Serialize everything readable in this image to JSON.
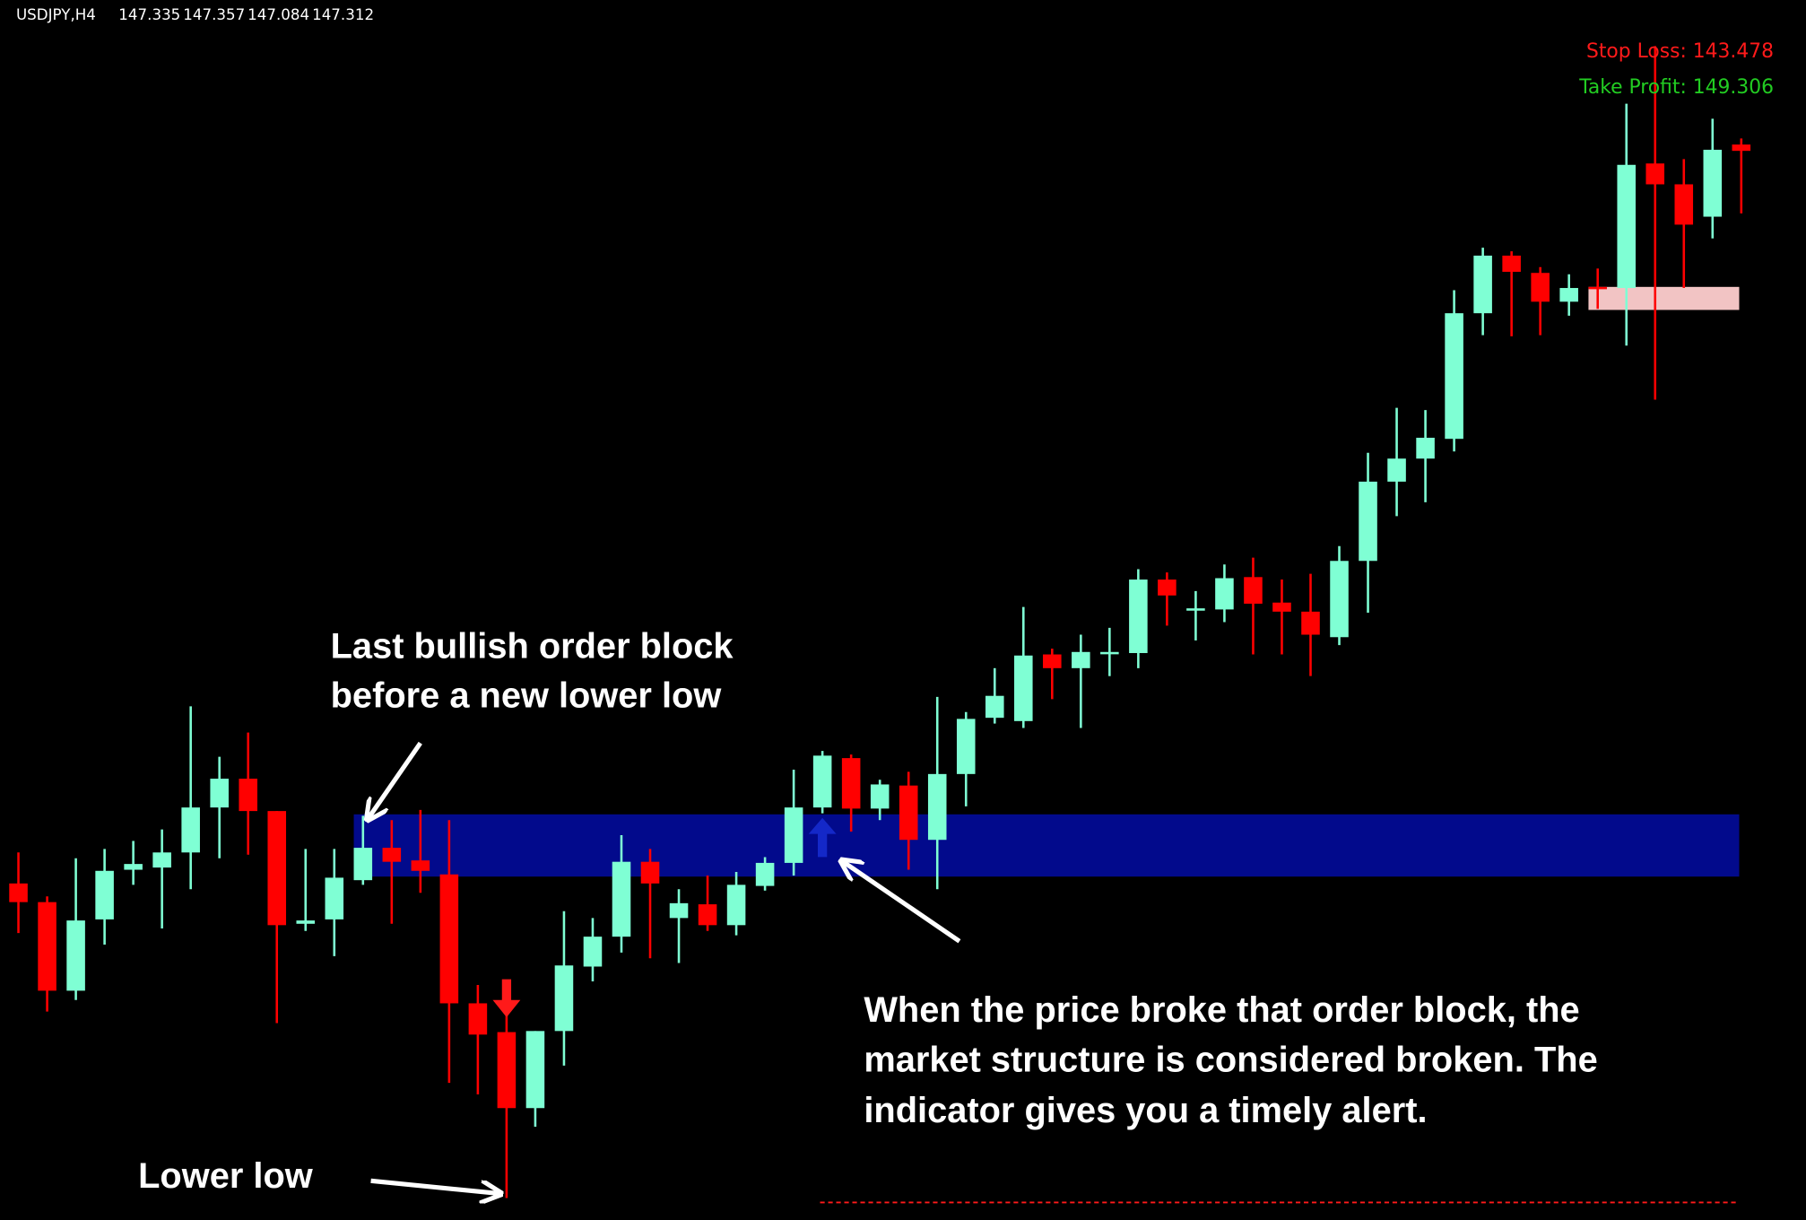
{
  "chart_data": {
    "type": "candlestick",
    "symbol": "USDJPY,H4",
    "ylim": [
      143.414,
      147.862
    ],
    "up_color": "#7fffd4",
    "down_color": "#ff0000",
    "open": [
      144.641,
      144.573,
      144.25,
      144.51,
      144.691,
      144.699,
      144.754,
      144.918,
      145.023,
      144.905,
      144.494,
      144.51,
      144.653,
      144.771,
      144.725,
      144.674,
      144.204,
      144.099,
      143.822,
      144.103,
      144.338,
      144.447,
      144.72,
      144.515,
      144.565,
      144.489,
      144.632,
      144.716,
      144.918,
      145.098,
      144.914,
      144.998,
      144.8,
      145.04,
      145.245,
      145.233,
      145.476,
      145.426,
      145.485,
      145.481,
      145.749,
      145.636,
      145.64,
      145.758,
      145.665,
      145.632,
      145.539,
      145.817,
      146.106,
      146.19,
      146.262,
      146.72,
      146.93,
      146.867,
      146.762,
      146.816,
      146.812,
      147.266,
      147.19,
      147.072,
      147.335
    ],
    "high": [
      144.754,
      144.594,
      144.733,
      144.767,
      144.796,
      144.838,
      145.287,
      145.103,
      145.191,
      144.905,
      144.767,
      144.767,
      144.888,
      144.872,
      144.909,
      144.872,
      144.271,
      144.258,
      144.103,
      144.54,
      144.515,
      144.817,
      144.767,
      144.62,
      144.67,
      144.683,
      144.737,
      145.056,
      145.124,
      145.111,
      145.019,
      145.048,
      145.321,
      145.266,
      145.426,
      145.649,
      145.497,
      145.548,
      145.573,
      145.787,
      145.775,
      145.707,
      145.804,
      145.829,
      145.749,
      145.77,
      145.871,
      146.211,
      146.375,
      146.367,
      146.804,
      146.959,
      146.946,
      146.888,
      146.862,
      146.883,
      147.484,
      147.694,
      147.282,
      147.429,
      147.357
    ],
    "low": [
      144.46,
      144.174,
      144.216,
      144.418,
      144.636,
      144.477,
      144.62,
      144.733,
      144.746,
      144.132,
      144.468,
      144.376,
      144.636,
      144.494,
      144.607,
      143.914,
      143.872,
      143.494,
      143.754,
      143.977,
      144.284,
      144.389,
      144.368,
      144.351,
      144.468,
      144.452,
      144.615,
      144.67,
      144.897,
      144.83,
      144.872,
      144.691,
      144.62,
      144.922,
      145.224,
      145.208,
      145.313,
      145.208,
      145.397,
      145.426,
      145.581,
      145.527,
      145.594,
      145.476,
      145.476,
      145.397,
      145.51,
      145.628,
      145.98,
      146.031,
      146.216,
      146.64,
      146.636,
      146.64,
      146.711,
      146.736,
      146.602,
      146.405,
      146.812,
      146.993,
      147.084
    ],
    "close": [
      144.573,
      144.25,
      144.506,
      144.687,
      144.712,
      144.754,
      144.918,
      145.023,
      144.905,
      144.489,
      144.506,
      144.662,
      144.771,
      144.72,
      144.687,
      144.204,
      144.09,
      143.822,
      144.103,
      144.342,
      144.447,
      144.72,
      144.641,
      144.569,
      144.489,
      144.636,
      144.716,
      144.918,
      145.107,
      144.914,
      145.002,
      144.8,
      145.04,
      145.241,
      145.325,
      145.472,
      145.426,
      145.485,
      145.485,
      145.749,
      145.691,
      145.644,
      145.754,
      145.661,
      145.632,
      145.548,
      145.817,
      146.106,
      146.19,
      146.266,
      146.72,
      146.93,
      146.871,
      146.762,
      146.812,
      146.812,
      147.261,
      147.19,
      147.043,
      147.316,
      147.312
    ],
    "zones": [
      {
        "start": 12,
        "top": 144.893,
        "bottom": 144.666,
        "color": "#020a8c"
      },
      {
        "start": 55,
        "top": 146.816,
        "bottom": 146.732,
        "color": "#f2c4c4"
      }
    ],
    "up_arrows": [
      28
    ],
    "down_arrows": [
      17
    ],
    "up_arrow_color": "#1428c8",
    "down_arrow_color": "#ff1a1a",
    "stop_loss": 143.478,
    "stop_loss_label": "Stop Loss: 143.478",
    "stop_loss_color": "#ff1a1a",
    "take_profit_label": "Take Profit: 149.306",
    "take_profit_color": "#22cc22",
    "annotations": {
      "order_block": [
        "Last bullish order block",
        "before a new lower low"
      ],
      "broken": [
        "When the price broke that order block, the",
        "market structure is considered broken. The",
        "indicator gives you a timely alert."
      ],
      "lower_low": "Lower low"
    }
  }
}
